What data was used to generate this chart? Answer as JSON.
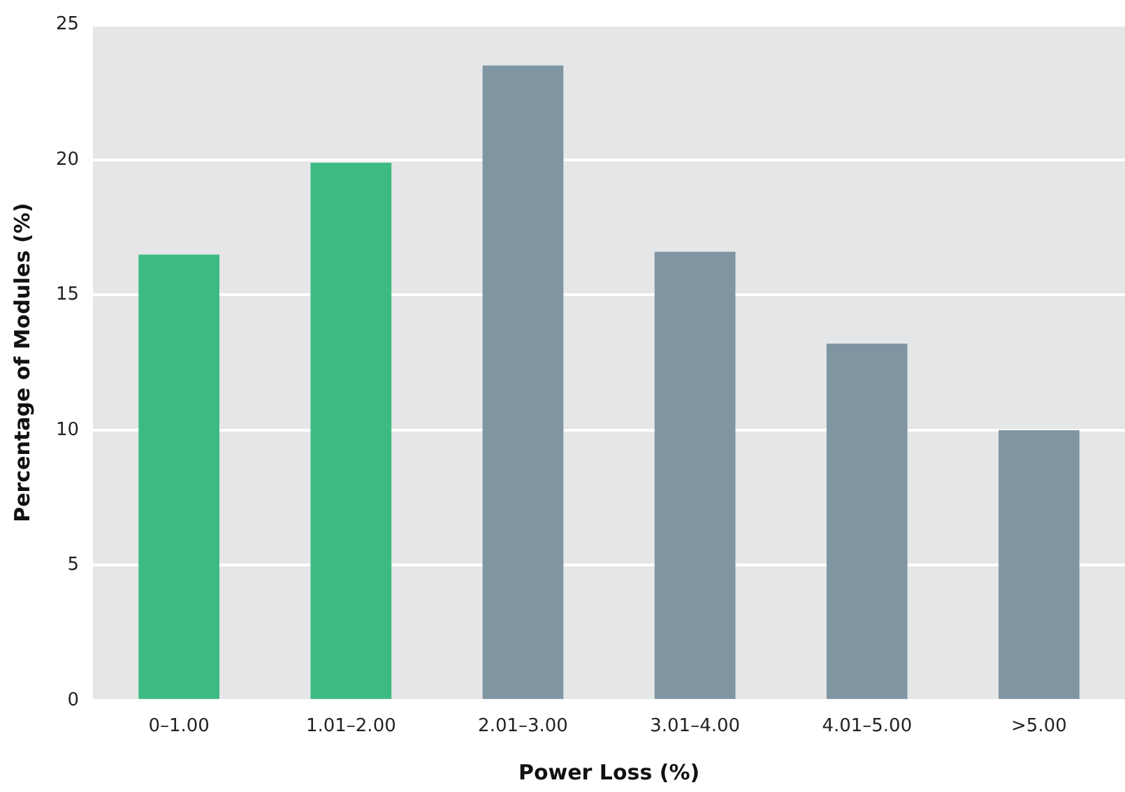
{
  "chart_data": {
    "type": "bar",
    "xlabel": "Power Loss (%)",
    "ylabel": "Percentage of Modules (%)",
    "categories": [
      "0–1.00",
      "1.01–2.00",
      "2.01–3.00",
      "3.01–4.00",
      "4.01–5.00",
      ">5.00"
    ],
    "values": [
      16.5,
      19.9,
      23.5,
      16.6,
      13.2,
      10.0
    ],
    "colors": [
      "#3dba82",
      "#3dba82",
      "#7f96a2",
      "#7f96a2",
      "#7f96a2",
      "#7f96a2"
    ],
    "ylim": [
      0,
      25
    ],
    "yticks": [
      0,
      5,
      10,
      15,
      20,
      25
    ],
    "grid": "y",
    "legend": false
  }
}
